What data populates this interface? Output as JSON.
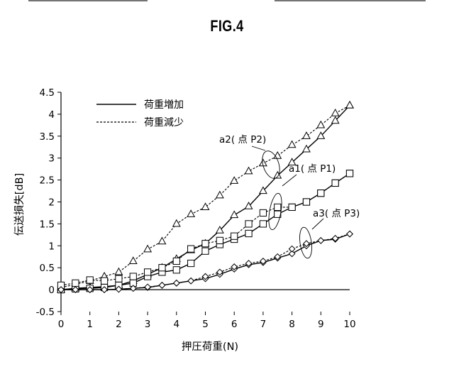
{
  "figure": {
    "title": "FIG.4"
  },
  "chart_data": {
    "type": "line",
    "xlabel": "押圧荷重(N)",
    "ylabel": "伝送損失[dB]",
    "xlim": [
      0,
      10
    ],
    "ylim": [
      -0.5,
      4.5
    ],
    "x_ticks": [
      "0",
      "1",
      "2",
      "3",
      "4",
      "5",
      "6",
      "7",
      "8",
      "9",
      "10"
    ],
    "y_ticks": [
      "-0.5",
      "0",
      "0.5",
      "1",
      "1.5",
      "2",
      "2.5",
      "3",
      "3.5",
      "4",
      "4.5"
    ],
    "legend": {
      "placement": "top-left",
      "entries": [
        {
          "label": "荷重増加",
          "style": "solid"
        },
        {
          "label": "荷重減少",
          "style": "dashed"
        }
      ]
    },
    "x": [
      0,
      0.5,
      1,
      1.5,
      2,
      2.5,
      3,
      3.5,
      4,
      4.5,
      5,
      5.5,
      6,
      6.5,
      7,
      7.5,
      8,
      8.5,
      9,
      9.5,
      10
    ],
    "series": [
      {
        "label": "a2( 点 P2)",
        "marker": "triangle",
        "style": "solid",
        "values": [
          0,
          0.03,
          0.05,
          0.07,
          0.1,
          0.2,
          0.35,
          0.5,
          0.7,
          0.9,
          1.05,
          1.35,
          1.7,
          1.9,
          2.25,
          2.6,
          2.9,
          3.2,
          3.5,
          3.85,
          4.2
        ]
      },
      {
        "label": "a2( 点 P2)",
        "marker": "triangle",
        "style": "dashed",
        "values": [
          0.05,
          0.12,
          0.2,
          0.3,
          0.4,
          0.65,
          0.92,
          1.1,
          1.5,
          1.72,
          1.88,
          2.15,
          2.48,
          2.7,
          2.88,
          3.05,
          3.3,
          3.5,
          3.75,
          4.02,
          4.2
        ]
      },
      {
        "label": "a1( 点 P1)",
        "marker": "square",
        "style": "solid",
        "values": [
          0,
          0.02,
          0.03,
          0.05,
          0.1,
          0.15,
          0.3,
          0.4,
          0.45,
          0.6,
          0.88,
          1.03,
          1.15,
          1.28,
          1.5,
          1.72,
          1.88,
          2.0,
          2.2,
          2.43,
          2.65
        ]
      },
      {
        "label": "a1( 点 P1)",
        "marker": "square",
        "style": "dashed",
        "values": [
          0.1,
          0.15,
          0.22,
          0.2,
          0.25,
          0.3,
          0.4,
          0.5,
          0.65,
          0.93,
          1.05,
          1.12,
          1.22,
          1.5,
          1.75,
          1.88,
          1.88,
          2.0,
          2.2,
          2.43,
          2.65
        ]
      },
      {
        "label": "a3( 点 P3)",
        "marker": "diamond",
        "style": "solid",
        "values": [
          0,
          0,
          0,
          0,
          0.01,
          0.03,
          0.05,
          0.1,
          0.15,
          0.2,
          0.25,
          0.35,
          0.47,
          0.57,
          0.62,
          0.72,
          0.82,
          1.0,
          1.12,
          1.15,
          1.27
        ]
      },
      {
        "label": "a3( 点 P3)",
        "marker": "diamond",
        "style": "dashed",
        "values": [
          0,
          0,
          0,
          0,
          0.01,
          0.03,
          0.06,
          0.1,
          0.15,
          0.2,
          0.3,
          0.4,
          0.52,
          0.6,
          0.65,
          0.75,
          0.93,
          1.05,
          1.12,
          1.17,
          1.27
        ]
      }
    ],
    "annotations": [
      {
        "text": "a2( 点 P2)"
      },
      {
        "text": "a1( 点 P1)"
      },
      {
        "text": "a3( 点 P3)"
      }
    ]
  }
}
